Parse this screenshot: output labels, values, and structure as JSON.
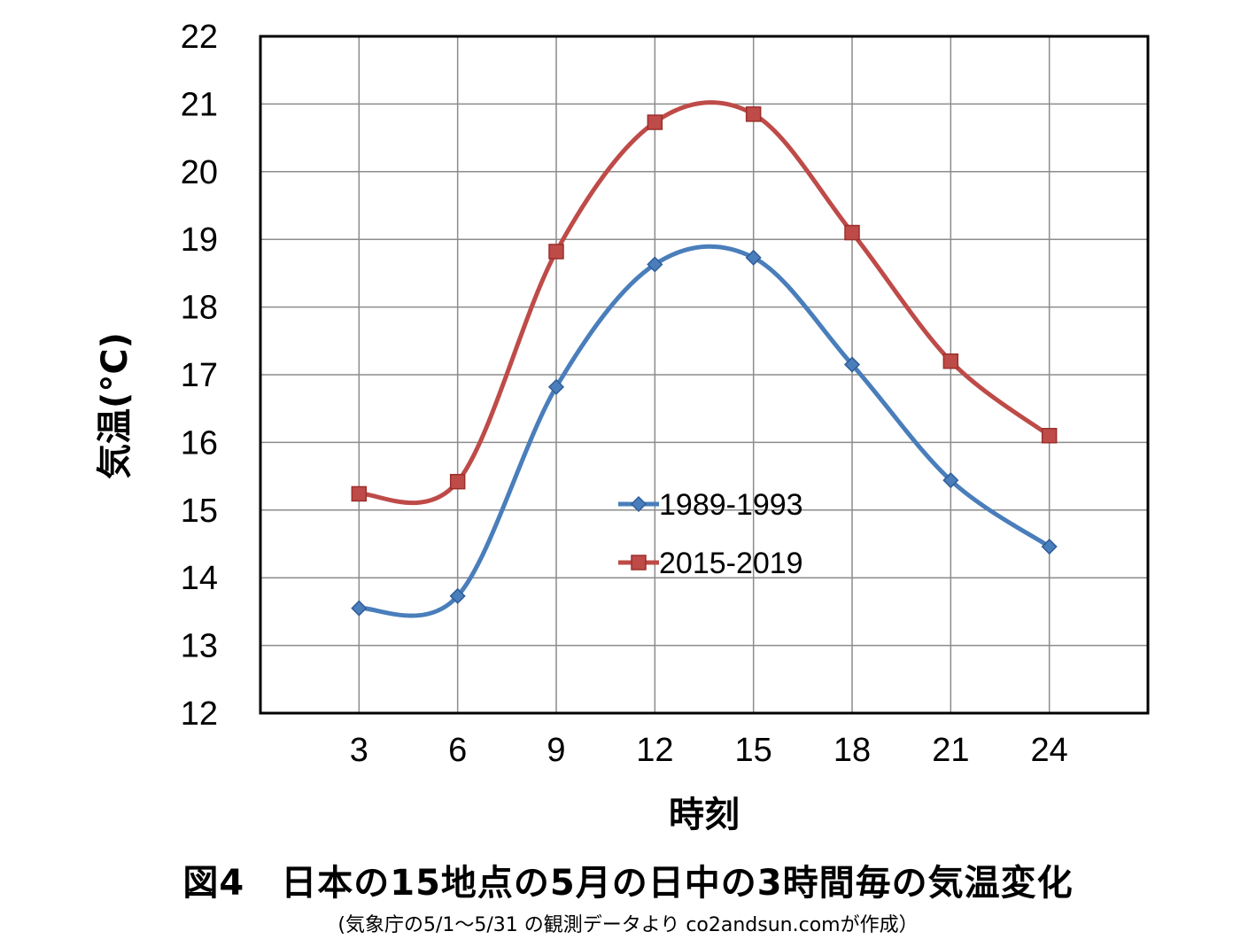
{
  "figure": {
    "title": "図4　日本の15地点の5月の日中の3時間毎の気温変化",
    "note": "(気象庁の5/1〜5/31 の観測データより co2andsun.comが作成）"
  },
  "chart_data": {
    "type": "line",
    "xlabel": "時刻",
    "ylabel": "気温(°C)",
    "x": [
      3,
      6,
      9,
      12,
      15,
      18,
      21,
      24
    ],
    "xlim": [
      0,
      27
    ],
    "ylim": [
      12,
      22
    ],
    "yticks": [
      12,
      13,
      14,
      15,
      16,
      17,
      18,
      19,
      20,
      21,
      22
    ],
    "grid": true,
    "smooth": true,
    "legend_position": "center",
    "series": [
      {
        "name": "1989-1993",
        "color": "#4a7ebb",
        "marker": "diamond",
        "values": [
          13.55,
          13.73,
          16.82,
          18.63,
          18.73,
          17.15,
          15.44,
          14.46
        ]
      },
      {
        "name": "2015-2019",
        "color": "#be4b48",
        "marker": "square",
        "values": [
          15.24,
          15.42,
          18.82,
          20.73,
          20.85,
          19.1,
          17.2,
          16.1
        ]
      }
    ]
  }
}
